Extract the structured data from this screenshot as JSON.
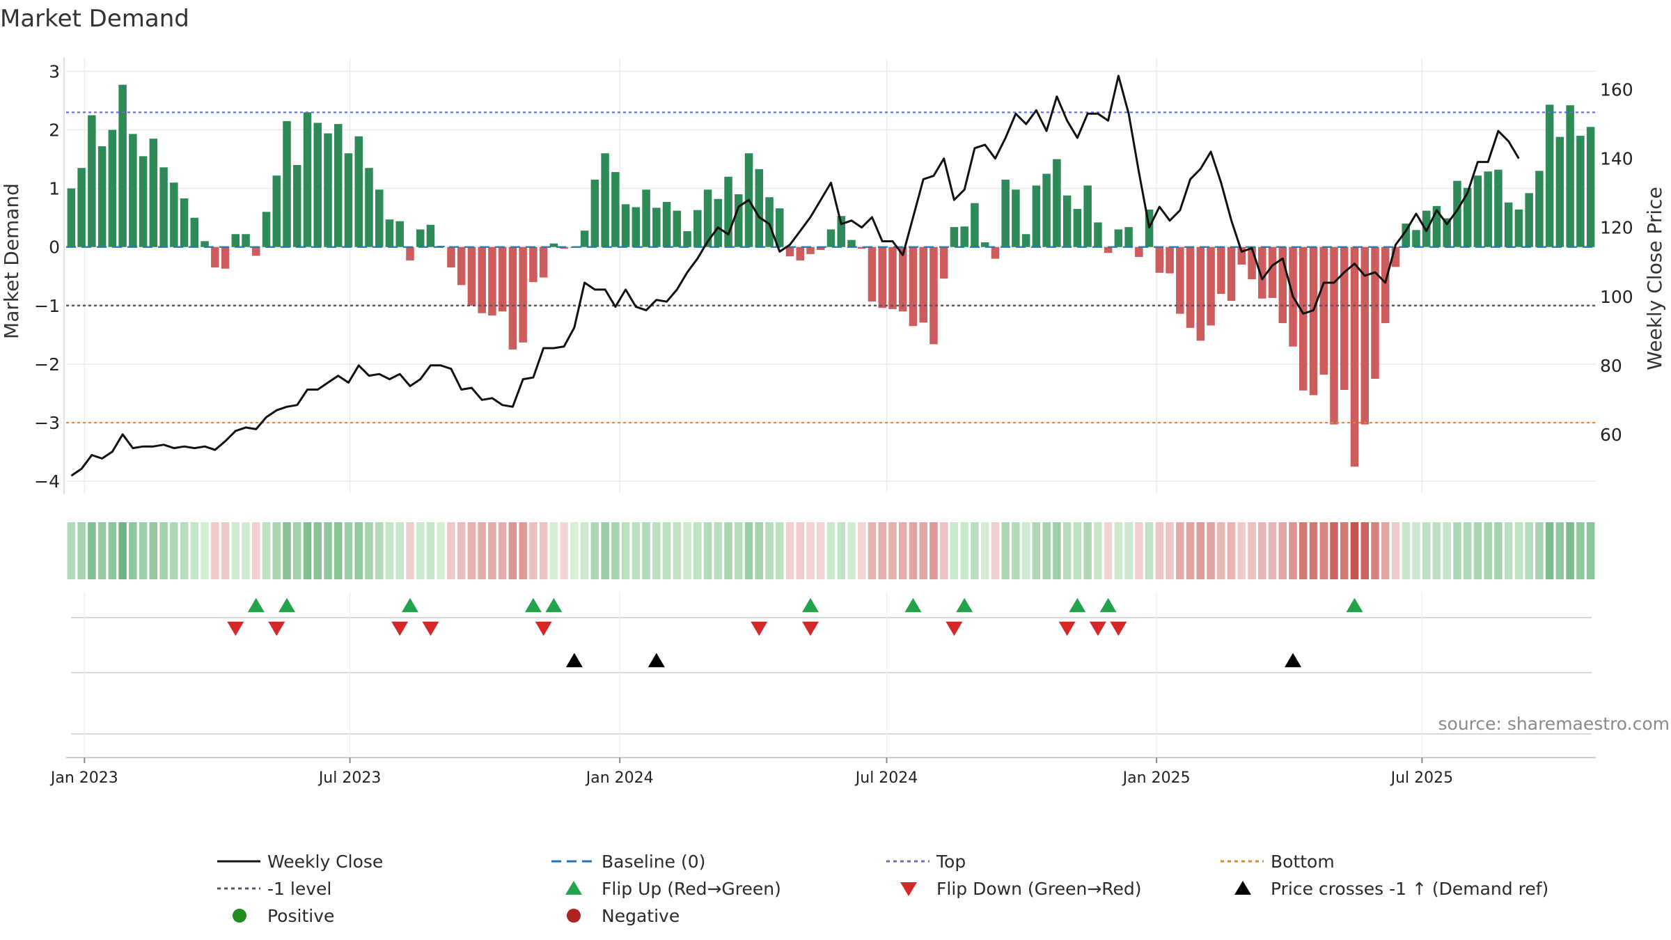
{
  "colors": {
    "positive": "#2e8b57",
    "negative": "#cd5c5c",
    "price_line": "#111111",
    "baseline": "#1f77b4",
    "top_line": "#6a6ad8",
    "bottom_line": "#e08a1e",
    "minus1_line": "#555566",
    "flip_up": "#22a34a",
    "flip_down": "#d62728",
    "price_cross": "#000000",
    "legend_positive": "#228b22",
    "legend_negative": "#b22222",
    "grid": "#e9e9e9",
    "tick_text": "#222222",
    "source_text": "#8a8a8a"
  },
  "chart_data": {
    "type": "bar",
    "title": "Market Demand",
    "ylabel": "Market Demand",
    "y2label": "Weekly Close Price",
    "source": "source: sharemaestro.com",
    "x_start_date": "2022-12-23",
    "x_step_days": 7,
    "x_ticks": [
      {
        "date": "2023-01-01",
        "label": "Jan 2023"
      },
      {
        "date": "2023-07-01",
        "label": "Jul 2023"
      },
      {
        "date": "2024-01-01",
        "label": "Jan 2024"
      },
      {
        "date": "2024-07-01",
        "label": "Jul 2024"
      },
      {
        "date": "2025-01-01",
        "label": "Jan 2025"
      },
      {
        "date": "2025-07-01",
        "label": "Jul 2025"
      }
    ],
    "ylim": [
      -4.2,
      3.1
    ],
    "y_ticks": [
      3,
      2,
      1,
      0,
      -1,
      -2,
      -3,
      -4
    ],
    "y_tick_labels": [
      "3",
      "2",
      "1",
      "0",
      "−1",
      "−2",
      "−3",
      "−4"
    ],
    "y2lim": [
      43,
      167
    ],
    "y2_ticks": [
      160,
      140,
      120,
      100,
      80,
      60
    ],
    "y2_tick_labels": [
      "160",
      "140",
      "120",
      "100",
      "80",
      "60"
    ],
    "reference_lines": {
      "top": 2.3,
      "minus1": -1,
      "bottom": -3,
      "baseline": 0
    },
    "demand": [
      1.0,
      1.35,
      2.25,
      1.72,
      2.0,
      2.77,
      1.93,
      1.55,
      1.85,
      1.36,
      1.1,
      0.83,
      0.5,
      0.1,
      -0.35,
      -0.37,
      0.22,
      0.22,
      -0.15,
      0.6,
      1.22,
      2.15,
      1.4,
      2.3,
      2.12,
      1.94,
      2.1,
      1.6,
      1.89,
      1.35,
      0.98,
      0.47,
      0.44,
      -0.23,
      0.3,
      0.38,
      0.02,
      -0.35,
      -0.65,
      -1.0,
      -1.13,
      -1.17,
      -1.1,
      -1.75,
      -1.63,
      -0.6,
      -0.52,
      0.06,
      -0.03,
      0.0,
      0.28,
      1.15,
      1.6,
      1.28,
      0.73,
      0.68,
      0.98,
      0.67,
      0.77,
      0.62,
      0.27,
      0.63,
      0.98,
      0.82,
      1.2,
      0.9,
      1.6,
      1.33,
      0.85,
      0.66,
      -0.16,
      -0.23,
      -0.12,
      -0.05,
      0.3,
      0.53,
      0.12,
      -0.03,
      -0.93,
      -1.04,
      -1.06,
      -1.1,
      -1.35,
      -1.29,
      -1.66,
      -0.54,
      0.34,
      0.35,
      0.75,
      0.08,
      -0.2,
      1.15,
      0.98,
      0.22,
      1.05,
      1.25,
      1.5,
      0.88,
      0.65,
      1.05,
      0.42,
      -0.1,
      0.3,
      0.34,
      -0.17,
      0.64,
      -0.44,
      -0.45,
      -1.14,
      -1.38,
      -1.6,
      -1.34,
      -0.8,
      -0.92,
      -0.3,
      -0.55,
      -0.88,
      -0.87,
      -1.3,
      -1.7,
      -2.45,
      -2.53,
      -2.18,
      -3.03,
      -2.44,
      -3.75,
      -3.03,
      -2.25,
      -1.3,
      -0.34,
      0.4,
      0.29,
      0.62,
      0.7,
      0.49,
      1.13,
      1.01,
      1.22,
      1.29,
      1.32,
      0.76,
      0.64,
      0.92,
      1.3,
      2.43,
      1.88,
      2.42,
      1.9,
      2.05
    ],
    "price": [
      48,
      50,
      54,
      53,
      55,
      60,
      56,
      56.5,
      56.5,
      57,
      56,
      56.5,
      56,
      56.5,
      55.5,
      58,
      61,
      62,
      61.5,
      65,
      67,
      68,
      68.5,
      73,
      73,
      75,
      77,
      75,
      80,
      77,
      77.5,
      76,
      77.5,
      74,
      76,
      80,
      80,
      79,
      73,
      73.5,
      70,
      70.5,
      68.5,
      68,
      76,
      76.5,
      85,
      85,
      85.5,
      91,
      104,
      102,
      102,
      97,
      102,
      97,
      96,
      99,
      98.5,
      102,
      107,
      111,
      116,
      120,
      118,
      126,
      128,
      123,
      121,
      113,
      115,
      119,
      123,
      128,
      133,
      121,
      122,
      120,
      123,
      116,
      116,
      112,
      123,
      134,
      135,
      140,
      128,
      131,
      143,
      144,
      140,
      146,
      153,
      150,
      154,
      148,
      158,
      151,
      146,
      153,
      153,
      151,
      164,
      153,
      136,
      120,
      126,
      122,
      125,
      134,
      137,
      142,
      133,
      122,
      113,
      114,
      105,
      109,
      111,
      100,
      95,
      96,
      104,
      104,
      107,
      109.5,
      106,
      107,
      104,
      115,
      119,
      124,
      119,
      125,
      121,
      125,
      130,
      139,
      139,
      148,
      145,
      140
    ],
    "flip_up_dates": [
      "2023-04-28",
      "2023-05-19",
      "2023-08-11",
      "2023-11-03",
      "2023-11-17",
      "2024-05-10",
      "2024-07-19",
      "2024-08-23",
      "2024-11-08",
      "2024-11-29",
      "2025-05-16"
    ],
    "flip_down_dates": [
      "2023-04-14",
      "2023-05-12",
      "2023-08-04",
      "2023-08-25",
      "2023-11-10",
      "2024-04-05",
      "2024-05-10",
      "2024-08-16",
      "2024-11-01",
      "2024-11-22",
      "2024-12-06"
    ],
    "price_cross_dates": [
      "2023-12-01",
      "2024-01-26",
      "2025-04-04"
    ],
    "legend": [
      {
        "label": "Weekly Close",
        "kind": "solid"
      },
      {
        "label": "Baseline (0)",
        "kind": "dash"
      },
      {
        "label": "Top",
        "kind": "dot_top"
      },
      {
        "label": "Bottom",
        "kind": "dot_bottom"
      },
      {
        "label": "-1 level",
        "kind": "dot_minus1"
      },
      {
        "label": "Flip Up (Red→Green)",
        "kind": "tri_up_green"
      },
      {
        "label": "Flip Down (Green→Red)",
        "kind": "tri_down_red"
      },
      {
        "label": "Price crosses -1 ↑ (Demand ref)",
        "kind": "tri_up_black"
      },
      {
        "label": "Positive",
        "kind": "dot_pos"
      },
      {
        "label": "Negative",
        "kind": "dot_neg"
      }
    ]
  }
}
